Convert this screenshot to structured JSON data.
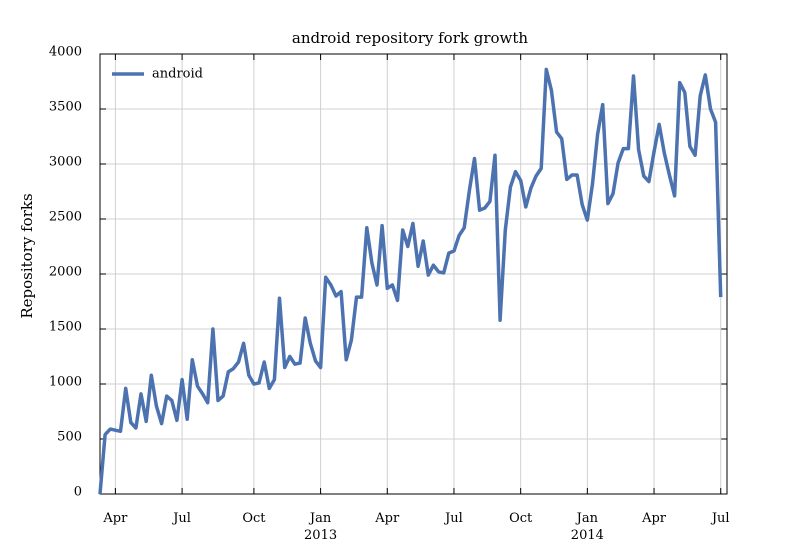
{
  "chart_data": {
    "type": "line",
    "title": "android repository fork growth",
    "y_label": "Repository forks",
    "categories": [
      null,
      null,
      null,
      "Apr",
      null,
      null,
      null,
      null,
      null,
      null,
      null,
      null,
      null,
      null,
      null,
      null,
      "Jul",
      null,
      null,
      null,
      null,
      null,
      null,
      null,
      null,
      null,
      null,
      null,
      null,
      null,
      "Oct",
      null,
      null,
      null,
      null,
      null,
      null,
      null,
      null,
      null,
      null,
      null,
      null,
      "Jan\n2013",
      null,
      null,
      null,
      null,
      null,
      null,
      null,
      null,
      null,
      null,
      null,
      null,
      "Apr",
      null,
      null,
      null,
      null,
      null,
      null,
      null,
      null,
      null,
      null,
      null,
      null,
      "Jul",
      null,
      null,
      null,
      null,
      null,
      null,
      null,
      null,
      null,
      null,
      null,
      null,
      "Oct",
      null,
      null,
      null,
      null,
      null,
      null,
      null,
      null,
      null,
      null,
      null,
      null,
      "Jan\n2014",
      null,
      null,
      null,
      null,
      null,
      null,
      null,
      null,
      null,
      null,
      null,
      null,
      "Apr",
      null,
      null,
      null,
      null,
      null,
      null,
      null,
      null,
      null,
      null,
      null,
      null,
      "Jul"
    ],
    "series": [
      {
        "name": "android",
        "color": "#4c72b0",
        "values": [
          0,
          540,
          590,
          580,
          570,
          960,
          650,
          600,
          910,
          660,
          1080,
          800,
          640,
          890,
          850,
          670,
          1040,
          680,
          1220,
          980,
          910,
          830,
          1500,
          850,
          890,
          1110,
          1140,
          1200,
          1370,
          1080,
          1000,
          1010,
          1200,
          960,
          1040,
          1780,
          1150,
          1250,
          1180,
          1190,
          1600,
          1370,
          1210,
          1150,
          1970,
          1900,
          1800,
          1840,
          1220,
          1400,
          1790,
          1790,
          2420,
          2100,
          1900,
          2440,
          1870,
          1900,
          1760,
          2400,
          2250,
          2460,
          2070,
          2300,
          1990,
          2080,
          2020,
          2010,
          2190,
          2210,
          2350,
          2420,
          2760,
          3050,
          2580,
          2600,
          2660,
          3080,
          1580,
          2400,
          2790,
          2930,
          2850,
          2610,
          2780,
          2890,
          2960,
          3860,
          3670,
          3290,
          3230,
          2860,
          2900,
          2900,
          2630,
          2490,
          2820,
          3270,
          3540,
          2640,
          2730,
          3010,
          3140,
          3140,
          3800,
          3130,
          2890,
          2840,
          3110,
          3360,
          3100,
          2900,
          2710,
          3740,
          3650,
          3160,
          3080,
          3620,
          3810,
          3500,
          3380,
          1790
        ]
      }
    ],
    "ylim": [
      0,
      4000
    ],
    "yticks": [
      0,
      500,
      1000,
      1500,
      2000,
      2500,
      3000,
      3500,
      4000
    ],
    "grid": true,
    "legend": "upper left"
  }
}
